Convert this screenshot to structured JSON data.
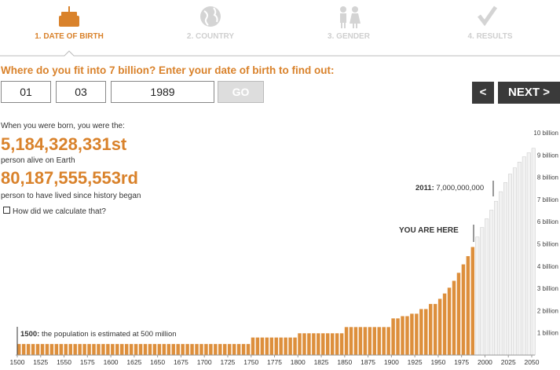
{
  "steps": [
    "1. DATE OF BIRTH",
    "2. COUNTRY",
    "3. GENDER",
    "4. RESULTS"
  ],
  "question": "Where do you fit into 7 billion? Enter your date of birth to find out:",
  "form": {
    "day": "01",
    "month": "03",
    "year": "1989",
    "go": "GO"
  },
  "buttons": {
    "prev": "<",
    "next": "NEXT >"
  },
  "result": {
    "intro": "When you were born, you were the:",
    "alive_rank": "5,184,328,331st",
    "alive_caption": "person alive on Earth",
    "lived_rank": "80,187,555,553rd",
    "lived_caption": "person to have lived since history began",
    "link": "How did we calculate that?"
  },
  "chart_data": {
    "type": "bar",
    "color": "#dd8f3c",
    "future_color": "#f2f2f2",
    "annotations": [
      {
        "label": "2011:",
        "text": "7,000,000,000"
      },
      {
        "text": "YOU ARE HERE"
      },
      {
        "label": "1500:",
        "text": "the population is estimated at 500 million"
      }
    ],
    "x": [
      1500,
      1505,
      1510,
      1515,
      1520,
      1525,
      1530,
      1535,
      1540,
      1545,
      1550,
      1555,
      1560,
      1565,
      1570,
      1575,
      1580,
      1585,
      1590,
      1595,
      1600,
      1605,
      1610,
      1615,
      1620,
      1625,
      1630,
      1635,
      1640,
      1645,
      1650,
      1655,
      1660,
      1665,
      1670,
      1675,
      1680,
      1685,
      1690,
      1695,
      1700,
      1705,
      1710,
      1715,
      1720,
      1725,
      1730,
      1735,
      1740,
      1745,
      1750,
      1755,
      1760,
      1765,
      1770,
      1775,
      1780,
      1785,
      1790,
      1795,
      1800,
      1805,
      1810,
      1815,
      1820,
      1825,
      1830,
      1835,
      1840,
      1845,
      1850,
      1855,
      1860,
      1865,
      1870,
      1875,
      1880,
      1885,
      1890,
      1895,
      1900,
      1905,
      1910,
      1915,
      1920,
      1925,
      1930,
      1935,
      1940,
      1945,
      1950,
      1955,
      1960,
      1965,
      1970,
      1975,
      1980,
      1985,
      1990,
      1995,
      2000,
      2005,
      2010,
      2015,
      2020,
      2025,
      2030,
      2035,
      2040,
      2045,
      2050
    ],
    "values": [
      0.5,
      0.5,
      0.5,
      0.5,
      0.5,
      0.5,
      0.5,
      0.5,
      0.5,
      0.5,
      0.5,
      0.5,
      0.5,
      0.5,
      0.5,
      0.5,
      0.5,
      0.5,
      0.5,
      0.5,
      0.5,
      0.5,
      0.5,
      0.5,
      0.5,
      0.5,
      0.5,
      0.5,
      0.5,
      0.5,
      0.5,
      0.5,
      0.5,
      0.5,
      0.5,
      0.5,
      0.5,
      0.5,
      0.5,
      0.5,
      0.5,
      0.5,
      0.5,
      0.5,
      0.5,
      0.5,
      0.5,
      0.5,
      0.5,
      0.5,
      0.79,
      0.79,
      0.79,
      0.79,
      0.79,
      0.79,
      0.79,
      0.79,
      0.79,
      0.79,
      0.98,
      0.98,
      0.98,
      0.98,
      0.98,
      0.98,
      0.98,
      0.98,
      0.98,
      0.98,
      1.26,
      1.26,
      1.26,
      1.26,
      1.26,
      1.26,
      1.26,
      1.26,
      1.26,
      1.26,
      1.65,
      1.65,
      1.75,
      1.75,
      1.86,
      1.86,
      2.07,
      2.07,
      2.3,
      2.3,
      2.53,
      2.77,
      3.03,
      3.34,
      3.7,
      4.08,
      4.45,
      4.86,
      5.31,
      5.74,
      6.13,
      6.52,
      6.92,
      7.35,
      7.76,
      8.14,
      8.42,
      8.68,
      8.92,
      9.1,
      9.3
    ],
    "xlim": [
      1500,
      2050
    ],
    "xticks": [
      1500,
      1525,
      1550,
      1575,
      1600,
      1625,
      1650,
      1675,
      1700,
      1725,
      1750,
      1775,
      1800,
      1825,
      1850,
      1875,
      1900,
      1925,
      1950,
      1975,
      2000,
      2025,
      2050
    ],
    "ylim": [
      0,
      10
    ],
    "yticks": [
      {
        "value": 1,
        "label": "1 billion"
      },
      {
        "value": 2,
        "label": "2 billion"
      },
      {
        "value": 3,
        "label": "3 billion"
      },
      {
        "value": 4,
        "label": "4 billion"
      },
      {
        "value": 5,
        "label": "5 billion"
      },
      {
        "value": 6,
        "label": "6 billion"
      },
      {
        "value": 7,
        "label": "7 billion"
      },
      {
        "value": 8,
        "label": "8 billion"
      },
      {
        "value": 9,
        "label": "9 billion"
      },
      {
        "value": 10,
        "label": "10 billion"
      }
    ]
  }
}
